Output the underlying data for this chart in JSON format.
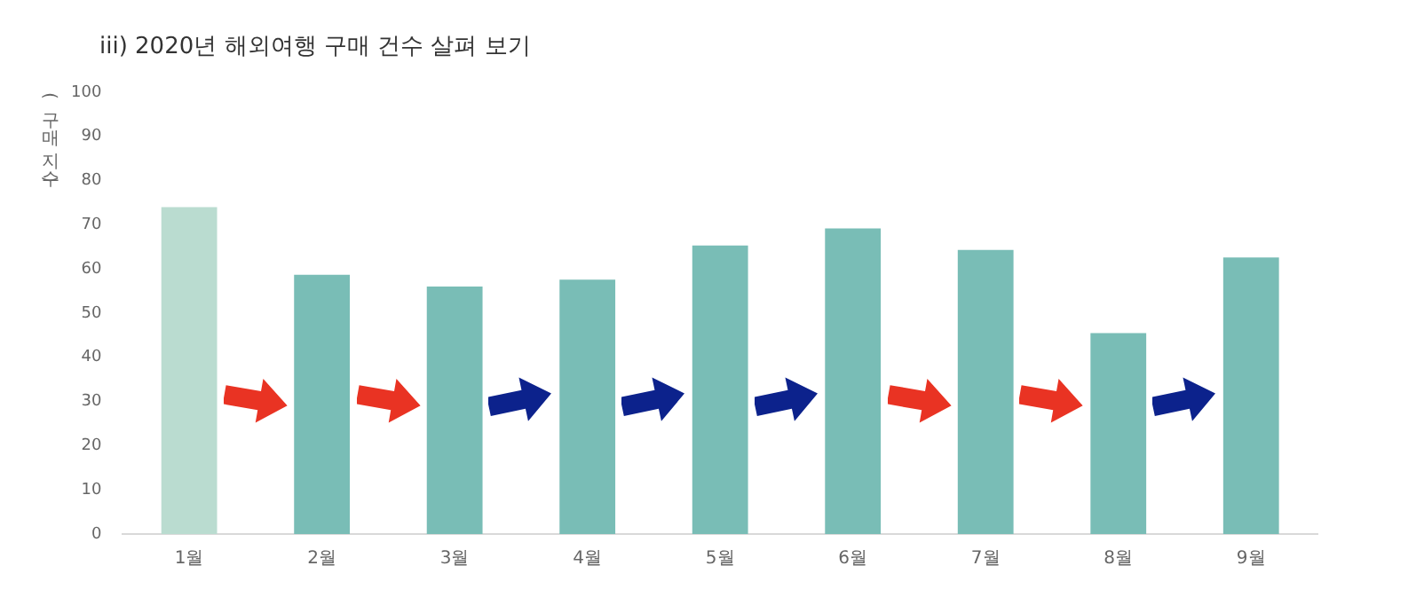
{
  "chart_data": {
    "type": "bar",
    "title": "iii) 2020년 해외여행 구매 건수 살펴 보기",
    "ylabel": "(구매 지수)",
    "categories": [
      "1월",
      "2월",
      "3월",
      "4월",
      "5월",
      "6월",
      "7월",
      "8월",
      "9월"
    ],
    "values": [
      74,
      58.7,
      56,
      57.6,
      65.3,
      69.2,
      64.3,
      45.5,
      62.6
    ],
    "colors": [
      "#badcd0",
      "#79bdb6",
      "#79bdb6",
      "#79bdb6",
      "#79bdb6",
      "#79bdb6",
      "#79bdb6",
      "#79bdb6",
      "#79bdb6"
    ],
    "ylim": [
      0,
      100
    ],
    "yticks": [
      0,
      10,
      20,
      30,
      40,
      50,
      60,
      70,
      80,
      90,
      100
    ],
    "grid": false,
    "legend": false
  }
}
